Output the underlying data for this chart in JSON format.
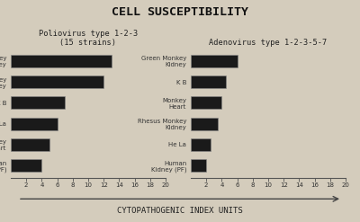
{
  "title": "CELL SUSCEPTIBILITY",
  "xlabel": "CYTOPATHOGENIC INDEX UNITS",
  "background_color": "#d4ccbc",
  "bar_color": "#1a1a1a",
  "polio_title": "Poliovirus type 1-2-3",
  "polio_subtitle": "(15 strains)",
  "polio_categories": [
    "Rhesus Monkey\nKidney",
    "Green Monkey\nKidney",
    "K B",
    "He La",
    "Monkey\nHeart",
    "Human\nKidney (PF)"
  ],
  "polio_values": [
    13.0,
    12.0,
    7.0,
    6.0,
    5.0,
    4.0
  ],
  "polio_xlim": [
    0,
    20
  ],
  "polio_xticks": [
    2,
    4,
    6,
    8,
    10,
    12,
    14,
    16,
    18,
    20
  ],
  "adeno_title": "Adenovirus type 1-2-3-5-7",
  "adeno_categories": [
    "Green Monkey\nKidney",
    "K B",
    "Monkey\nHeart",
    "Rhesus Monkey\nKidney",
    "He La",
    "Human\nKidney (PF)"
  ],
  "adeno_values": [
    6.0,
    4.5,
    4.0,
    3.5,
    2.5,
    2.0
  ],
  "adeno_xlim": [
    0,
    20
  ],
  "adeno_xticks": [
    2,
    4,
    6,
    8,
    10,
    12,
    14,
    16,
    18,
    20
  ]
}
